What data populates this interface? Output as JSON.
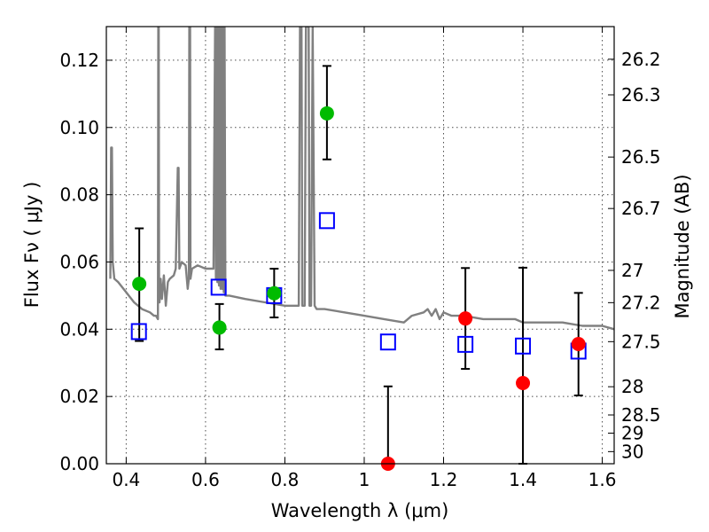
{
  "chart_data": {
    "type": "scatter",
    "xlabel": "Wavelength  λ (μm)",
    "ylabel": "Flux  Fν  ( μJy )",
    "y2label": "Magnitude (AB)",
    "xlim": [
      0.35,
      1.63
    ],
    "ylim": [
      0.0,
      0.13
    ],
    "grid": true,
    "x_ticks": [
      0.4,
      0.6,
      0.8,
      1.0,
      1.2,
      1.4,
      1.6
    ],
    "x_tick_labels": [
      "0.4",
      "0.6",
      "0.8",
      "1",
      "1.2",
      "1.4",
      "1.6"
    ],
    "y_ticks": [
      0.0,
      0.02,
      0.04,
      0.06,
      0.08,
      0.1,
      0.12
    ],
    "y_tick_labels": [
      "0.00",
      "0.02",
      "0.04",
      "0.06",
      "0.08",
      "0.10",
      "0.12"
    ],
    "y2_ticks": [
      {
        "label": "26.2",
        "flux": 0.1203
      },
      {
        "label": "26.3",
        "flux": 0.1097
      },
      {
        "label": "26.5",
        "flux": 0.0912
      },
      {
        "label": "26.7",
        "flux": 0.0759
      },
      {
        "label": "27",
        "flux": 0.0575
      },
      {
        "label": "27.2",
        "flux": 0.0479
      },
      {
        "label": "27.5",
        "flux": 0.0363
      },
      {
        "label": "28",
        "flux": 0.0229
      },
      {
        "label": "28.5",
        "flux": 0.0145
      },
      {
        "label": "29",
        "flux": 0.0091
      },
      {
        "label": "30",
        "flux": 0.0036
      }
    ],
    "series": [
      {
        "kind": "model-spectrum",
        "color": "#808080",
        "x": [
          0.36,
          0.362,
          0.364,
          0.366,
          0.37,
          0.38,
          0.4,
          0.42,
          0.44,
          0.46,
          0.47,
          0.475,
          0.48,
          0.481,
          0.482,
          0.483,
          0.484,
          0.487,
          0.49,
          0.495,
          0.5,
          0.505,
          0.51,
          0.52,
          0.525,
          0.53,
          0.532,
          0.534,
          0.54,
          0.55,
          0.555,
          0.558,
          0.559,
          0.56,
          0.561,
          0.562,
          0.566,
          0.58,
          0.6,
          0.62,
          0.624,
          0.626,
          0.628,
          0.63,
          0.632,
          0.634,
          0.636,
          0.638,
          0.64,
          0.642,
          0.644,
          0.646,
          0.648,
          0.65,
          0.66,
          0.7,
          0.75,
          0.8,
          0.82,
          0.835,
          0.838,
          0.84,
          0.842,
          0.844,
          0.85,
          0.853,
          0.856,
          0.86,
          0.862,
          0.866,
          0.87,
          0.875,
          0.88,
          0.9,
          0.95,
          1.0,
          1.05,
          1.1,
          1.12,
          1.15,
          1.16,
          1.17,
          1.18,
          1.19,
          1.2,
          1.22,
          1.25,
          1.3,
          1.35,
          1.38,
          1.4,
          1.45,
          1.5,
          1.55,
          1.6,
          1.63
        ],
        "y": [
          0.055,
          0.094,
          0.094,
          0.06,
          0.055,
          0.054,
          0.051,
          0.048,
          0.046,
          0.045,
          0.044,
          0.044,
          0.043,
          0.13,
          0.13,
          0.05,
          0.048,
          0.055,
          0.049,
          0.056,
          0.047,
          0.054,
          0.055,
          0.056,
          0.058,
          0.088,
          0.088,
          0.058,
          0.06,
          0.059,
          0.052,
          0.055,
          0.13,
          0.13,
          0.13,
          0.055,
          0.058,
          0.059,
          0.058,
          0.058,
          0.13,
          0.055,
          0.13,
          0.054,
          0.13,
          0.053,
          0.13,
          0.052,
          0.13,
          0.052,
          0.13,
          0.051,
          0.13,
          0.05,
          0.05,
          0.049,
          0.048,
          0.047,
          0.047,
          0.047,
          0.13,
          0.13,
          0.13,
          0.047,
          0.047,
          0.13,
          0.13,
          0.13,
          0.047,
          0.047,
          0.13,
          0.047,
          0.046,
          0.046,
          0.045,
          0.044,
          0.043,
          0.042,
          0.044,
          0.045,
          0.046,
          0.044,
          0.046,
          0.043,
          0.045,
          0.044,
          0.044,
          0.043,
          0.043,
          0.043,
          0.042,
          0.042,
          0.042,
          0.041,
          0.041,
          0.04
        ]
      },
      {
        "kind": "model-photometry",
        "marker": "open-square",
        "color": "#0000ff",
        "x": [
          0.432,
          0.633,
          0.773,
          0.906,
          1.06,
          1.255,
          1.4,
          1.54
        ],
        "y": [
          0.0393,
          0.0525,
          0.05,
          0.0723,
          0.0362,
          0.0355,
          0.035,
          0.0335
        ]
      },
      {
        "kind": "detections",
        "marker": "filled-circle",
        "color": "#00bb00",
        "x": [
          0.433,
          0.635,
          0.773,
          0.906
        ],
        "y": [
          0.0535,
          0.0405,
          0.0507,
          0.1042
        ],
        "yerr_low": [
          0.0365,
          0.034,
          0.0435,
          0.0905
        ],
        "yerr_high": [
          0.07,
          0.0475,
          0.058,
          0.1183
        ]
      },
      {
        "kind": "low-significance",
        "marker": "filled-circle",
        "color": "#ff0000",
        "x": [
          1.06,
          1.255,
          1.4,
          1.54
        ],
        "y": [
          0.0,
          0.0432,
          0.024,
          0.0356
        ],
        "yerr_low": [
          0.0,
          0.0282,
          0.0,
          0.0203
        ],
        "yerr_high": [
          0.023,
          0.0582,
          0.0583,
          0.0508
        ]
      }
    ]
  }
}
